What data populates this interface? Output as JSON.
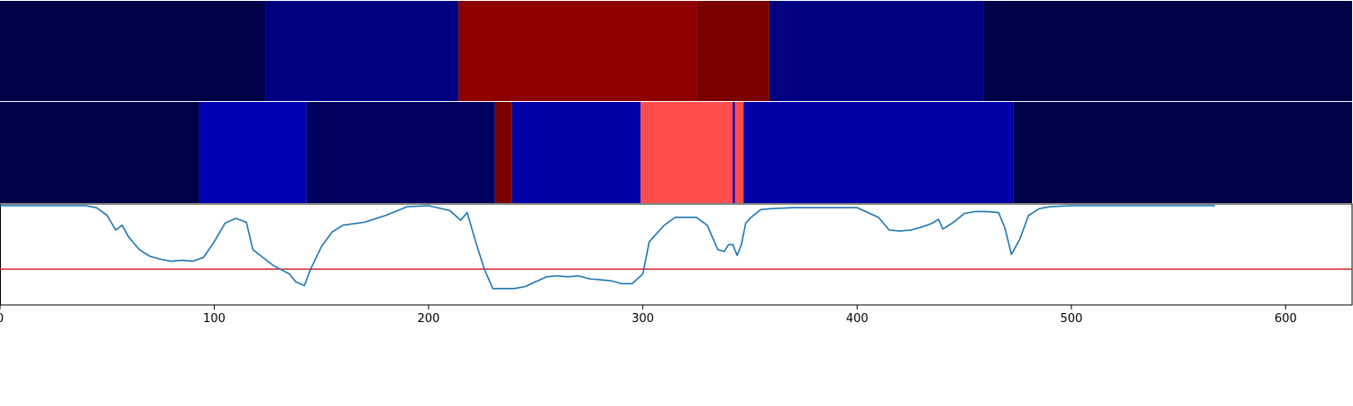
{
  "chart_data": [
    {
      "type": "heatmap",
      "title": "",
      "x_range": [
        0,
        631
      ],
      "colors": {
        "dark_navy": "#000048",
        "navy": "#000080",
        "blue": "#0000b4",
        "dark_red": "#8e0000",
        "maroon": "#7a0000",
        "light_red": "#ff4d4d"
      },
      "segments": [
        {
          "start": 0,
          "end": 124,
          "color": "#000048"
        },
        {
          "start": 124,
          "end": 214,
          "color": "#000080"
        },
        {
          "start": 214,
          "end": 325,
          "color": "#8e0000"
        },
        {
          "start": 325,
          "end": 359,
          "color": "#7a0000"
        },
        {
          "start": 359,
          "end": 459,
          "color": "#000080"
        },
        {
          "start": 459,
          "end": 631,
          "color": "#000048"
        }
      ]
    },
    {
      "type": "heatmap",
      "title": "",
      "x_range": [
        0,
        631
      ],
      "segments": [
        {
          "start": 0,
          "end": 93,
          "color": "#000048"
        },
        {
          "start": 93,
          "end": 143,
          "color": "#0000b4"
        },
        {
          "start": 143,
          "end": 231,
          "color": "#00005f"
        },
        {
          "start": 231,
          "end": 239,
          "color": "#7a0000"
        },
        {
          "start": 239,
          "end": 299,
          "color": "#0000a8"
        },
        {
          "start": 299,
          "end": 342,
          "color": "#ff4d4d"
        },
        {
          "start": 342,
          "end": 343,
          "color": "#0000a8"
        },
        {
          "start": 343,
          "end": 347,
          "color": "#ff4d4d"
        },
        {
          "start": 347,
          "end": 473,
          "color": "#0000a8"
        },
        {
          "start": 473,
          "end": 631,
          "color": "#000048"
        }
      ]
    },
    {
      "type": "line",
      "title": "",
      "xlabel": "",
      "ylabel": "",
      "xlim": [
        0,
        631
      ],
      "ylim": [
        0,
        1
      ],
      "xticks": [
        "0",
        "100",
        "200",
        "300",
        "400",
        "500",
        "600"
      ],
      "grid": false,
      "series": [
        {
          "color": "#1f77b4",
          "x": [
            0,
            40,
            45,
            50,
            54,
            57,
            60,
            65,
            70,
            75,
            80,
            85,
            90,
            95,
            100,
            105,
            110,
            115,
            118,
            122,
            128,
            135,
            138,
            142,
            145,
            150,
            155,
            160,
            170,
            180,
            190,
            200,
            210,
            215,
            218,
            222,
            226,
            230,
            232,
            240,
            245,
            250,
            255,
            260,
            265,
            270,
            275,
            280,
            285,
            290,
            295,
            298,
            300,
            303,
            310,
            315,
            320,
            325,
            330,
            335,
            338,
            340,
            342,
            344,
            346,
            348,
            350,
            355,
            360,
            370,
            380,
            390,
            400,
            410,
            415,
            420,
            425,
            430,
            435,
            438,
            440,
            445,
            450,
            455,
            460,
            466,
            469,
            472,
            476,
            480,
            485,
            490,
            500,
            510,
            520,
            530,
            550,
            567
          ],
          "y": [
            1.0,
            1.0,
            0.98,
            0.9,
            0.75,
            0.8,
            0.68,
            0.55,
            0.48,
            0.45,
            0.43,
            0.44,
            0.43,
            0.47,
            0.63,
            0.82,
            0.87,
            0.83,
            0.55,
            0.48,
            0.38,
            0.3,
            0.22,
            0.18,
            0.35,
            0.58,
            0.73,
            0.8,
            0.83,
            0.9,
            0.99,
            1.0,
            0.95,
            0.85,
            0.93,
            0.63,
            0.35,
            0.15,
            0.15,
            0.15,
            0.17,
            0.22,
            0.27,
            0.28,
            0.27,
            0.28,
            0.25,
            0.24,
            0.23,
            0.2,
            0.2,
            0.26,
            0.3,
            0.63,
            0.8,
            0.88,
            0.88,
            0.88,
            0.8,
            0.55,
            0.53,
            0.6,
            0.6,
            0.49,
            0.6,
            0.82,
            0.87,
            0.96,
            0.97,
            0.98,
            0.98,
            0.98,
            0.98,
            0.88,
            0.75,
            0.74,
            0.75,
            0.78,
            0.82,
            0.86,
            0.76,
            0.83,
            0.92,
            0.94,
            0.94,
            0.93,
            0.77,
            0.5,
            0.66,
            0.9,
            0.97,
            0.99,
            1.0,
            1.0,
            1.0,
            1.0,
            1.0,
            1.0
          ]
        }
      ],
      "reference_lines": [
        {
          "orientation": "horizontal",
          "y": 0.35,
          "color": "#d62728"
        }
      ]
    }
  ]
}
